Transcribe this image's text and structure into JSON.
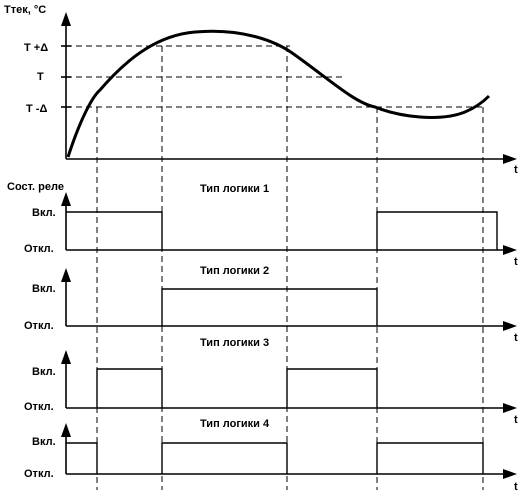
{
  "temperature_chart": {
    "y_axis_label": "Ттек, °С",
    "x_axis_label": "t",
    "levels": [
      "T +Δ",
      "T",
      "T -Δ"
    ]
  },
  "relay_section": {
    "title": "Сост. реле",
    "on_label": "Вкл.",
    "off_label": "Откл.",
    "t_label": "t",
    "logic_types": [
      {
        "title": "Тип логики 1",
        "states": [
          "on",
          "off",
          "off",
          "on"
        ]
      },
      {
        "title": "Тип логики 2",
        "states": [
          "off",
          "on",
          "on",
          "off"
        ]
      },
      {
        "title": "Тип логики 3",
        "states": [
          "on",
          "off",
          "on",
          "off"
        ]
      },
      {
        "title": "Тип логики 4",
        "states": [
          "on",
          "off",
          "on",
          "off"
        ]
      }
    ]
  },
  "colors": {
    "line": "#000000",
    "background": "#ffffff"
  }
}
